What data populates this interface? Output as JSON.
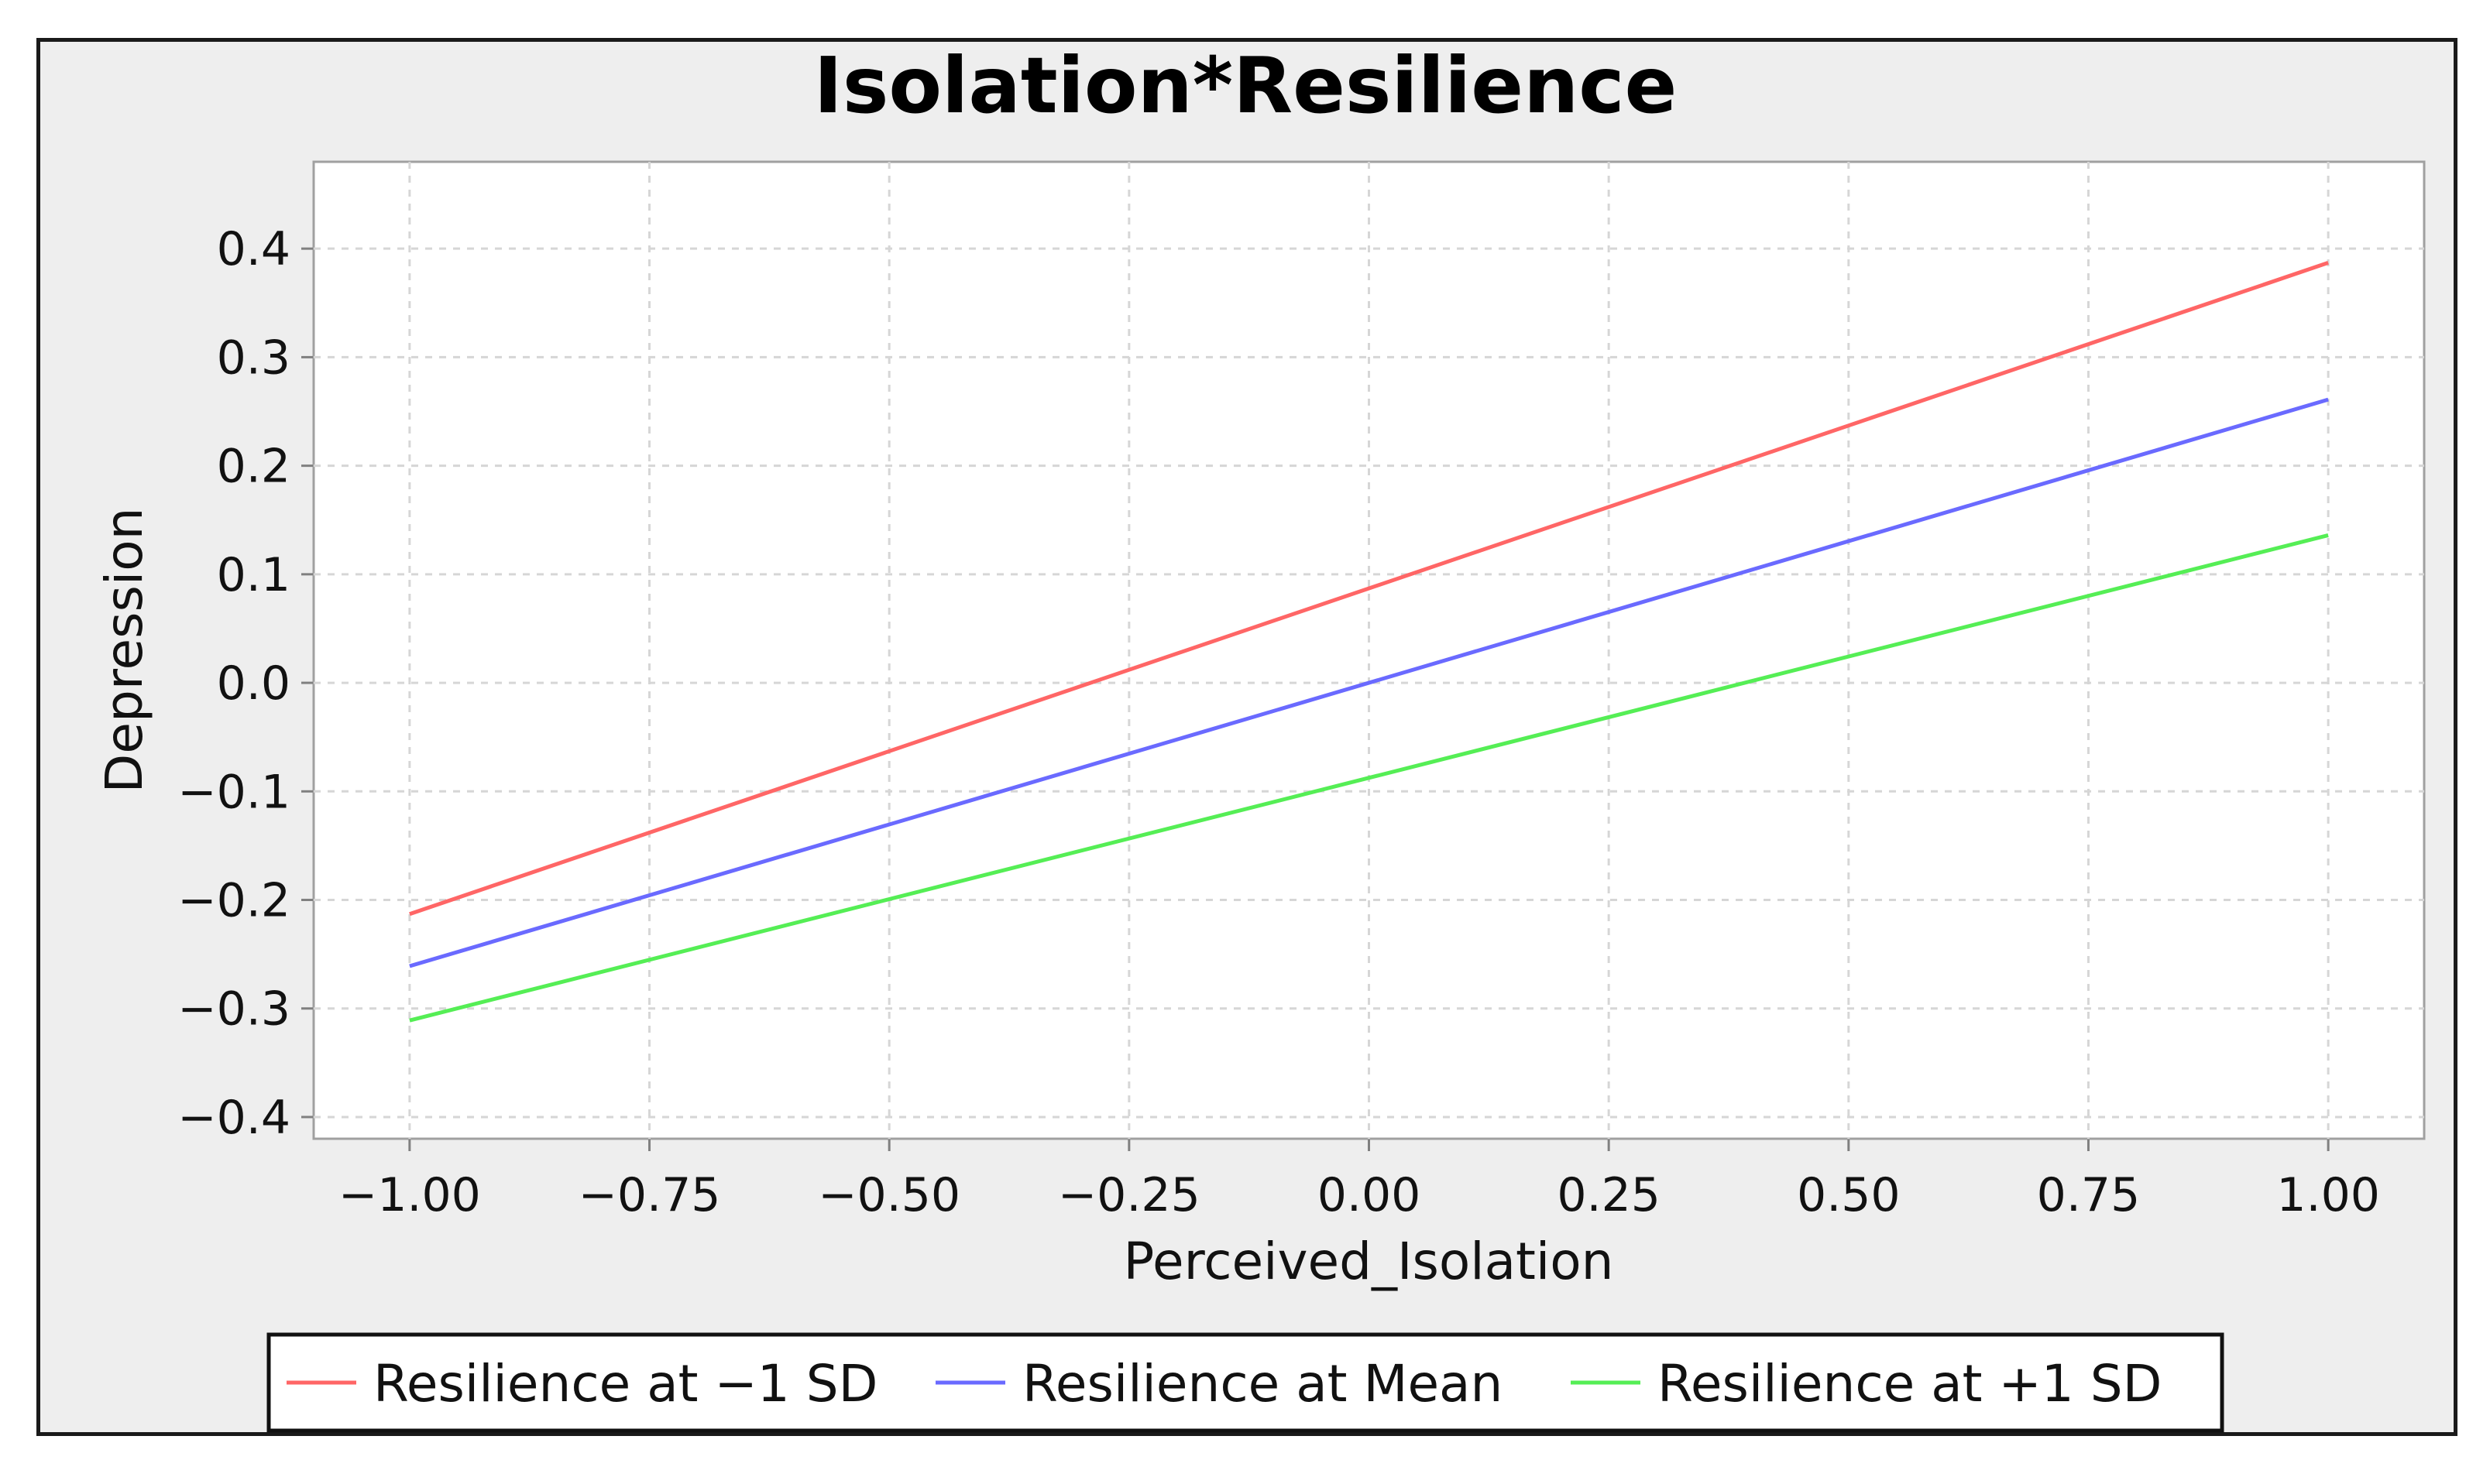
{
  "chart_data": {
    "type": "line",
    "title": "Isolation*Resilience",
    "xlabel": "Perceived_Isolation",
    "ylabel": "Depression",
    "xlim": [
      -1.1,
      1.1
    ],
    "ylim": [
      -0.42,
      0.48
    ],
    "xticks": [
      -1.0,
      -0.75,
      -0.5,
      -0.25,
      0.0,
      0.25,
      0.5,
      0.75,
      1.0
    ],
    "xtick_labels": [
      "−1.00",
      "−0.75",
      "−0.50",
      "−0.25",
      "0.00",
      "0.25",
      "0.50",
      "0.75",
      "1.00"
    ],
    "yticks": [
      -0.4,
      -0.3,
      -0.2,
      -0.1,
      0.0,
      0.1,
      0.2,
      0.3,
      0.4
    ],
    "ytick_labels": [
      "−0.4",
      "−0.3",
      "−0.2",
      "−0.1",
      "0.0",
      "0.1",
      "0.2",
      "0.3",
      "0.4"
    ],
    "grid": true,
    "legend_position": "bottom",
    "series": [
      {
        "name": "Resilience at −1 SD",
        "color": "#ff6666",
        "x": [
          -1.0,
          1.0
        ],
        "y": [
          -0.213,
          0.387
        ]
      },
      {
        "name": "Resilience at Mean",
        "color": "#6a6aff",
        "x": [
          -1.0,
          1.0
        ],
        "y": [
          -0.261,
          0.261
        ]
      },
      {
        "name": "Resilience at +1 SD",
        "color": "#55ee55",
        "x": [
          -1.0,
          1.0
        ],
        "y": [
          -0.311,
          0.136
        ]
      }
    ]
  }
}
